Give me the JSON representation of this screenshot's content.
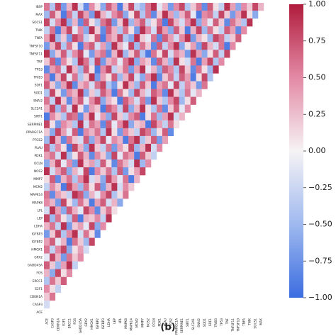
{
  "chart_data": {
    "type": "heatmap",
    "caption": "(b)",
    "rows": [
      "IBSP",
      "MAX",
      "SOCS1",
      "TNIK",
      "TNFA",
      "TNFSF10",
      "TNFSF11",
      "TNF",
      "TP53",
      "TRIB3",
      "SDF1",
      "SOD1",
      "SNAI2",
      "SLC2A1",
      "SIRT1",
      "SERPINE1",
      "PPARGC1A",
      "PTGS2",
      "PLAU",
      "PDK1",
      "OCLN",
      "NOS2",
      "MMP7",
      "MCM2",
      "MAPK14",
      "MAPK8",
      "LPL",
      "LEP",
      "LDHA",
      "IGFBP3",
      "IGFBP2",
      "HMOX1",
      "GPX2",
      "GADD45A",
      "FOS",
      "ERCC1",
      "E2F1",
      "CDKN1A",
      "CASP3",
      "ACE"
    ],
    "columns": [
      "ACE",
      "CASP3",
      "CDKN1A",
      "E2F1",
      "ERCC1",
      "FOS",
      "GADD45A",
      "GPX2",
      "HMOX1",
      "IGFBP2",
      "IGFBP3",
      "LDHA",
      "LEP",
      "LPL",
      "MAPK8",
      "MAPK14",
      "MCM2",
      "MMP7",
      "NOS2",
      "OCLN",
      "PDK1",
      "PLAU",
      "PTGS2",
      "PPARGC1A",
      "SERPINE1",
      "SIRT1",
      "SLC2A1",
      "SNAI2",
      "SOD1",
      "SDF1",
      "TRIB3",
      "TP53",
      "TNF",
      "TNFSF11",
      "TNFSF10",
      "TNFA",
      "TNIK",
      "SOCS1",
      "MAX"
    ],
    "matrix": [
      [
        0.6,
        -0.4,
        0.8,
        -0.7,
        0.3,
        0.9,
        -0.2,
        -0.8,
        0.5,
        0.1,
        -0.6,
        0.7,
        0.4,
        -0.9,
        0.2,
        0.8,
        -0.3,
        -0.5,
        0.6,
        0.9,
        -0.1,
        0.3,
        -0.7,
        0.5,
        0.8,
        -0.4,
        0.2,
        0.6,
        -0.8,
        0.7,
        0.1,
        -0.3,
        0.9,
        0.4,
        -0.6,
        0.5,
        0.2,
        0.8,
        0.3
      ],
      [
        -0.5,
        0.7,
        0.2,
        -0.9,
        0.6,
        -0.3,
        0.8,
        0.4,
        -0.7,
        0.9,
        0.3,
        -0.2,
        0.5,
        0.7,
        -0.6,
        0.1,
        0.8,
        -0.4,
        0.6,
        -0.8,
        0.2,
        0.9,
        0.4,
        -0.5,
        0.3,
        0.7,
        -0.1,
        -0.9,
        0.5,
        0.6,
        -0.3,
        0.8,
        0.2,
        -0.7,
        0.4,
        0.9,
        0.1,
        -0.6
      ],
      [
        0.8,
        -0.2,
        0.5,
        0.9,
        -0.6,
        0.3,
        -0.8,
        0.7,
        0.1,
        -0.4,
        0.6,
        0.8,
        -0.7,
        0.2,
        0.9,
        -0.5,
        0.4,
        0.7,
        -0.3,
        0.1,
        0.6,
        -0.9,
        0.8,
        0.3,
        -0.2,
        0.5,
        0.9,
        -0.6,
        0.4,
        -0.1,
        0.7,
        0.2,
        -0.8,
        0.6,
        0.3,
        -0.4,
        0.9
      ],
      [
        -0.3,
        0.6,
        -0.9,
        0.4,
        0.8,
        -0.1,
        0.5,
        -0.6,
        0.9,
        0.2,
        -0.8,
        0.7,
        0.3,
        -0.4,
        0.6,
        0.1,
        -0.7,
        0.9,
        0.5,
        -0.2,
        0.8,
        0.4,
        -0.6,
        0.7,
        0.2,
        -0.9,
        0.3,
        0.8,
        -0.5,
        0.6,
        0.1,
        -0.3,
        0.7,
        0.4,
        -0.8,
        0.5
      ],
      [
        0.4,
        0.9,
        -0.5,
        0.2,
        -0.7,
        0.8,
        0.6,
        -0.3,
        0.1,
        0.7,
        -0.9,
        0.5,
        0.3,
        0.8,
        -0.4,
        -0.6,
        0.9,
        0.2,
        -0.1,
        0.6,
        -0.8,
        0.7,
        0.4,
        -0.2,
        0.5,
        0.9,
        -0.7,
        0.3,
        0.1,
        -0.5,
        0.8,
        0.6,
        -0.3,
        0.2,
        0.7
      ],
      [
        -0.7,
        0.3,
        0.8,
        -0.4,
        0.6,
        0.1,
        -0.9,
        0.5,
        0.7,
        -0.2,
        0.4,
        -0.6,
        0.9,
        0.3,
        -0.1,
        0.8,
        -0.5,
        0.6,
        0.2,
        -0.8,
        0.7,
        -0.3,
        0.5,
        0.9,
        -0.6,
        0.1,
        0.4,
        -0.7,
        0.8,
        0.3,
        -0.2,
        0.6,
        -0.9,
        0.5
      ],
      [
        0.9,
        -0.6,
        0.2,
        0.7,
        -0.3,
        0.5,
        0.8,
        -0.1,
        -0.7,
        0.4,
        0.6,
        -0.8,
        0.3,
        0.9,
        -0.5,
        0.2,
        0.7,
        -0.4,
        -0.9,
        0.6,
        0.1,
        0.8,
        -0.2,
        0.5,
        0.3,
        -0.7,
        0.9,
        0.4,
        -0.6,
        0.1,
        0.7,
        -0.3,
        0.8
      ],
      [
        0.2,
        0.7,
        -0.8,
        0.5,
        0.1,
        -0.4,
        0.9,
        0.6,
        -0.3,
        0.8,
        -0.7,
        0.3,
        0.5,
        -0.1,
        0.6,
        0.9,
        -0.6,
        0.4,
        0.2,
        -0.8,
        0.7,
        0.3,
        -0.5,
        0.9,
        0.1,
        -0.2,
        0.6,
        -0.9,
        0.4,
        0.8,
        -0.4,
        0.5
      ],
      [
        -0.8,
        0.4,
        0.6,
        -0.2,
        0.9,
        0.3,
        -0.5,
        0.7,
        0.1,
        -0.9,
        0.5,
        0.8,
        -0.3,
        0.2,
        0.6,
        -0.7,
        0.4,
        0.9,
        -0.1,
        0.3,
        -0.6,
        0.7,
        0.5,
        -0.4,
        0.8,
        0.2,
        -0.8,
        0.6,
        0.1,
        -0.5,
        0.9
      ],
      [
        0.5,
        -0.9,
        0.3,
        0.8,
        -0.1,
        0.6,
        -0.4,
        0.2,
        0.9,
        -0.7,
        0.4,
        0.1,
        0.7,
        -0.5,
        0.3,
        0.8,
        -0.2,
        -0.6,
        0.5,
        0.9,
        -0.8,
        0.2,
        0.6,
        -0.3,
        0.7,
        0.4,
        -0.9,
        0.1,
        0.8,
        -0.4
      ],
      [
        0.7,
        0.2,
        -0.6,
        0.4,
        0.9,
        -0.8,
        0.3,
        0.5,
        -0.2,
        0.6,
        0.8,
        -0.4,
        -0.7,
        0.1,
        0.9,
        0.3,
        -0.5,
        0.7,
        0.2,
        -0.9,
        0.4,
        0.6,
        -0.1,
        0.8,
        -0.3,
        0.5,
        0.2,
        -0.7,
        0.6
      ],
      [
        -0.4,
        0.8,
        0.1,
        -0.7,
        0.5,
        0.3,
        0.9,
        -0.6,
        0.2,
        -0.3,
        0.7,
        0.4,
        -0.9,
        0.6,
        0.1,
        -0.5,
        0.8,
        0.3,
        -0.2,
        0.7,
        0.5,
        -0.8,
        0.9,
        0.2,
        -0.4,
        0.6,
        -0.1,
        0.3
      ],
      [
        0.6,
        -0.3,
        0.9,
        0.2,
        -0.8,
        0.4,
        0.7,
        -0.1,
        0.5,
        0.8,
        -0.6,
        0.3,
        0.1,
        -0.9,
        0.7,
        0.4,
        -0.2,
        0.6,
        -0.7,
        0.9,
        0.2,
        -0.4,
        0.5,
        0.8,
        -0.5,
        0.1,
        0.7
      ],
      [
        0.3,
        0.8,
        -0.5,
        0.6,
        -0.2,
        0.9,
        0.1,
        -0.7,
        0.4,
        0.2,
        -0.9,
        0.7,
        0.5,
        -0.3,
        0.8,
        -0.6,
        0.3,
        0.9,
        0.1,
        -0.4,
        0.6,
        -0.8,
        0.2,
        0.7,
        -0.1,
        0.5
      ],
      [
        -0.9,
        0.5,
        0.2,
        -0.4,
        0.7,
        0.6,
        -0.8,
        0.3,
        0.9,
        -0.1,
        0.4,
        -0.6,
        0.8,
        0.2,
        -0.3,
        0.5,
        0.7,
        -0.9,
        0.1,
        0.6,
        -0.5,
        0.4,
        0.9,
        -0.2,
        0.3
      ],
      [
        0.8,
        0.1,
        -0.7,
        0.5,
        0.3,
        -0.4,
        0.9,
        -0.2,
        0.6,
        0.4,
        -0.8,
        0.7,
        -0.1,
        0.5,
        0.9,
        -0.6,
        0.2,
        0.3,
        -0.9,
        0.8,
        0.4,
        -0.3,
        0.6,
        0.1
      ],
      [
        0.2,
        -0.6,
        0.8,
        0.4,
        -0.1,
        0.7,
        -0.9,
        0.5,
        0.3,
        0.6,
        -0.4,
        0.9,
        0.1,
        -0.7,
        0.5,
        0.2,
        -0.3,
        0.8,
        0.6,
        -0.5,
        0.1,
        0.7,
        -0.8
      ],
      [
        -0.5,
        0.9,
        0.3,
        -0.8,
        0.6,
        0.2,
        -0.2,
        0.7,
        -0.6,
        0.4,
        0.8,
        -0.1,
        0.5,
        0.3,
        -0.9,
        0.6,
        0.9,
        -0.4,
        0.2,
        0.7,
        -0.7,
        0.4
      ],
      [
        0.7,
        -0.4,
        0.5,
        0.1,
        -0.9,
        0.8,
        0.3,
        -0.6,
        0.9,
        0.2,
        -0.3,
        0.6,
        -0.7,
        0.4,
        0.1,
        0.8,
        -0.5,
        0.3,
        0.9,
        -0.2,
        0.5
      ],
      [
        0.4,
        0.6,
        -0.2,
        0.9,
        -0.5,
        0.1,
        0.7,
        0.3,
        -0.8,
        0.5,
        0.2,
        -0.6,
        0.8,
        -0.1,
        0.6,
        0.4,
        -0.9,
        0.7,
        0.2,
        -0.3
      ],
      [
        -0.6,
        0.3,
        0.8,
        -0.1,
        0.5,
        -0.7,
        0.9,
        0.2,
        0.4,
        -0.4,
        0.7,
        0.1,
        -0.8,
        0.6,
        0.3,
        -0.2,
        0.9,
        -0.5,
        0.5
      ],
      [
        0.9,
        -0.2,
        0.4,
        0.7,
        -0.6,
        0.3,
        -0.1,
        0.8,
        -0.9,
        0.5,
        0.2,
        0.6,
        -0.4,
        0.7,
        -0.7,
        0.1,
        0.4,
        0.8
      ],
      [
        0.1,
        0.7,
        -0.8,
        0.3,
        0.6,
        -0.4,
        0.5,
        0.9,
        -0.2,
        0.2,
        -0.6,
        0.8,
        0.4,
        -0.1,
        0.6,
        -0.9,
        0.3
      ],
      [
        -0.3,
        0.5,
        0.2,
        -0.9,
        0.8,
        0.4,
        -0.5,
        0.6,
        0.1,
        0.7,
        -0.7,
        0.3,
        0.9,
        -0.2,
        0.5,
        0.2
      ],
      [
        0.6,
        -0.8,
        0.4,
        0.2,
        -0.3,
        0.9,
        0.7,
        -0.6,
        0.3,
        -0.1,
        0.5,
        0.8,
        -0.4,
        0.1,
        0.6
      ],
      [
        0.5,
        0.3,
        -0.7,
        0.8,
        0.1,
        -0.5,
        0.6,
        0.2,
        -0.9,
        0.4,
        0.7,
        -0.2,
        0.3,
        -0.6
      ],
      [
        -0.2,
        0.9,
        0.4,
        -0.6,
        0.7,
        0.3,
        -0.1,
        0.8,
        0.5,
        -0.8,
        0.2,
        0.6,
        0.1
      ],
      [
        0.8,
        -0.5,
        0.6,
        0.1,
        -0.4,
        0.7,
        -0.9,
        0.3,
        0.2,
        0.5,
        -0.3,
        0.9
      ],
      [
        0.3,
        0.6,
        -0.3,
        0.9,
        -0.7,
        0.2,
        0.4,
        -0.1,
        0.8,
        -0.6,
        0.5
      ],
      [
        -0.7,
        0.2,
        0.8,
        -0.4,
        0.5,
        0.9,
        -0.2,
        0.6,
        0.1,
        -0.8
      ],
      [
        0.4,
        0.7,
        -0.1,
        0.3,
        -0.9,
        0.6,
        0.2,
        -0.5,
        0.8
      ],
      [
        0.6,
        -0.3,
        0.5,
        0.8,
        -0.6,
        0.1,
        0.4,
        -0.2
      ],
      [
        -0.1,
        0.8,
        0.3,
        -0.7,
        0.6,
        0.2,
        0.5
      ],
      [
        0.7,
        0.2,
        -0.5,
        0.4,
        0.9,
        -0.3
      ],
      [
        0.3,
        -0.6,
        0.8,
        0.1,
        0.5
      ],
      [
        -0.4,
        0.6,
        0.2,
        0.7
      ],
      [
        0.5,
        0.1,
        -0.3
      ],
      [
        0.2,
        0.6
      ],
      [
        -0.2
      ],
      []
    ],
    "clim": [
      -1,
      1
    ],
    "cticks": [
      {
        "value": 1,
        "label": "1.00"
      },
      {
        "value": 0.75,
        "label": "0.75"
      },
      {
        "value": 0.5,
        "label": "0.50"
      },
      {
        "value": 0.25,
        "label": "0.25"
      },
      {
        "value": 0,
        "label": "0.00"
      },
      {
        "value": -0.25,
        "label": "−0.25"
      },
      {
        "value": -0.5,
        "label": "−0.50"
      },
      {
        "value": -0.75,
        "label": "−0.75"
      },
      {
        "value": -1,
        "label": "−1.00"
      }
    ]
  }
}
